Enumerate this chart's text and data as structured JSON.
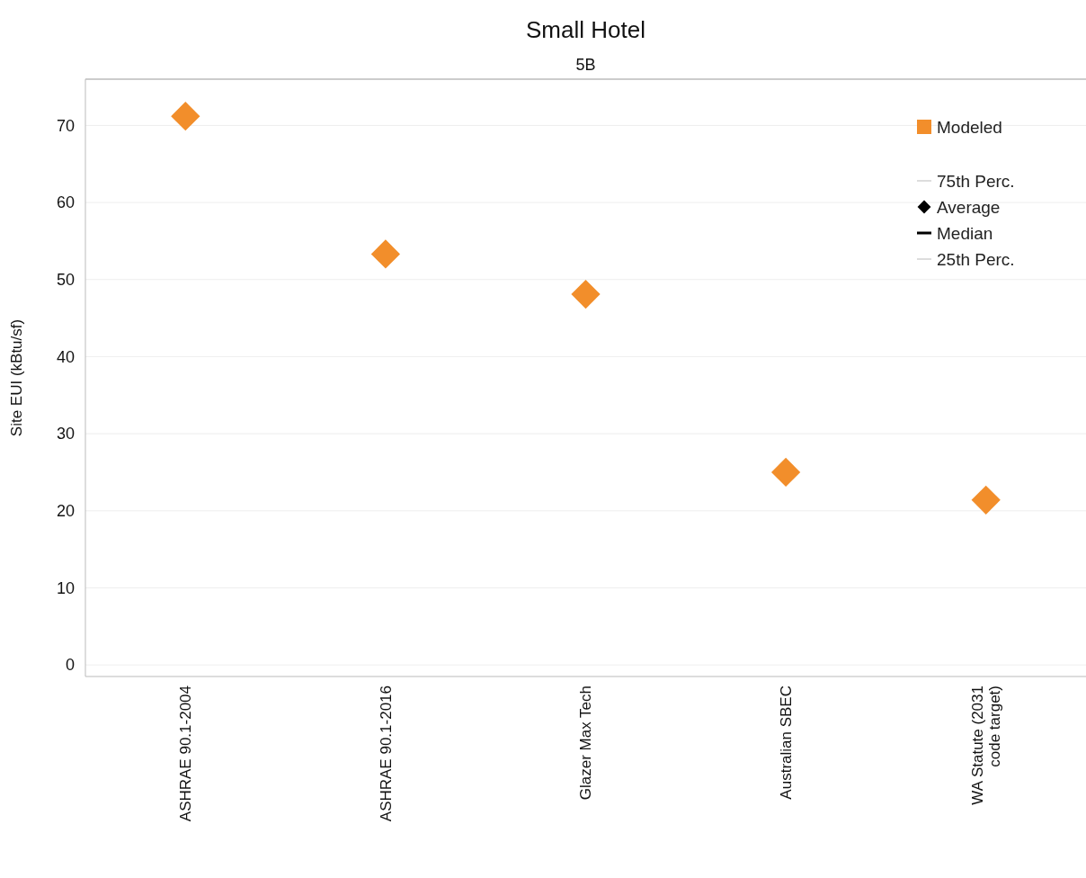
{
  "chart_data": {
    "type": "scatter",
    "title": "Small Hotel",
    "subtitle": "5B",
    "ylabel": "Site EUI (kBtu/sf)",
    "categories": [
      "ASHRAE 90.1-2004",
      "ASHRAE 90.1-2016",
      "Glazer Max Tech",
      "Australian SBEC",
      "WA Statute (2031 code target)"
    ],
    "series": [
      {
        "name": "Modeled",
        "color": "#f28e2b",
        "marker": "diamond",
        "values": [
          71.2,
          53.3,
          48.1,
          25.0,
          21.4
        ]
      },
      {
        "name": "75th Perc.",
        "color": "#bbbbbb",
        "type": "line",
        "values": [
          null,
          null,
          null,
          null,
          null
        ]
      },
      {
        "name": "Average",
        "color": "#000000",
        "marker": "diamond",
        "values": [
          null,
          null,
          null,
          null,
          null
        ]
      },
      {
        "name": "Median",
        "color": "#000000",
        "type": "line",
        "values": [
          null,
          null,
          null,
          null,
          null
        ]
      },
      {
        "name": "25th Perc.",
        "color": "#bbbbbb",
        "type": "line",
        "values": [
          null,
          null,
          null,
          null,
          null
        ]
      }
    ],
    "ylim": [
      -1.5,
      76
    ],
    "yticks": [
      0,
      10,
      20,
      30,
      40,
      50,
      60,
      70
    ],
    "grid": "y",
    "legend": "top right"
  }
}
